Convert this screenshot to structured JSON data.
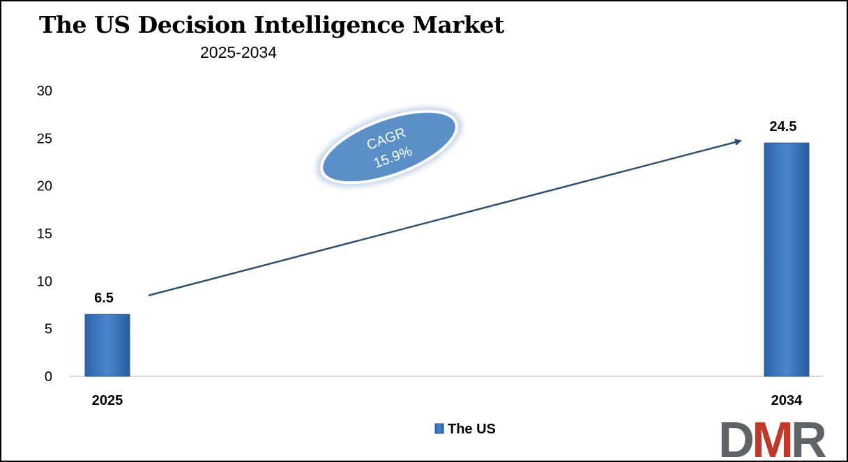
{
  "chart_data": {
    "type": "bar",
    "title": "The US Decision Intelligence Market",
    "subtitle": "2025-2034",
    "categories": [
      "2025",
      "2034"
    ],
    "series": [
      {
        "name": "The US",
        "values": [
          6.5,
          24.5
        ],
        "color": "#3C78C0"
      }
    ],
    "data_labels": [
      "6.5",
      "24.5"
    ],
    "y_ticks": [
      "0",
      "5",
      "10",
      "15",
      "20",
      "25",
      "30"
    ],
    "ylim": [
      0,
      30
    ],
    "grid": false,
    "legend": {
      "position": "bottom",
      "entries": [
        "The US"
      ]
    },
    "annotation": {
      "line1": "CAGR",
      "line2": "15.9%",
      "color": "#5B8FC7"
    },
    "arrow_color": "#2F4F6F"
  },
  "logo": {
    "text": "DMR",
    "colors": [
      "#5F6368",
      "#C0392B"
    ]
  }
}
